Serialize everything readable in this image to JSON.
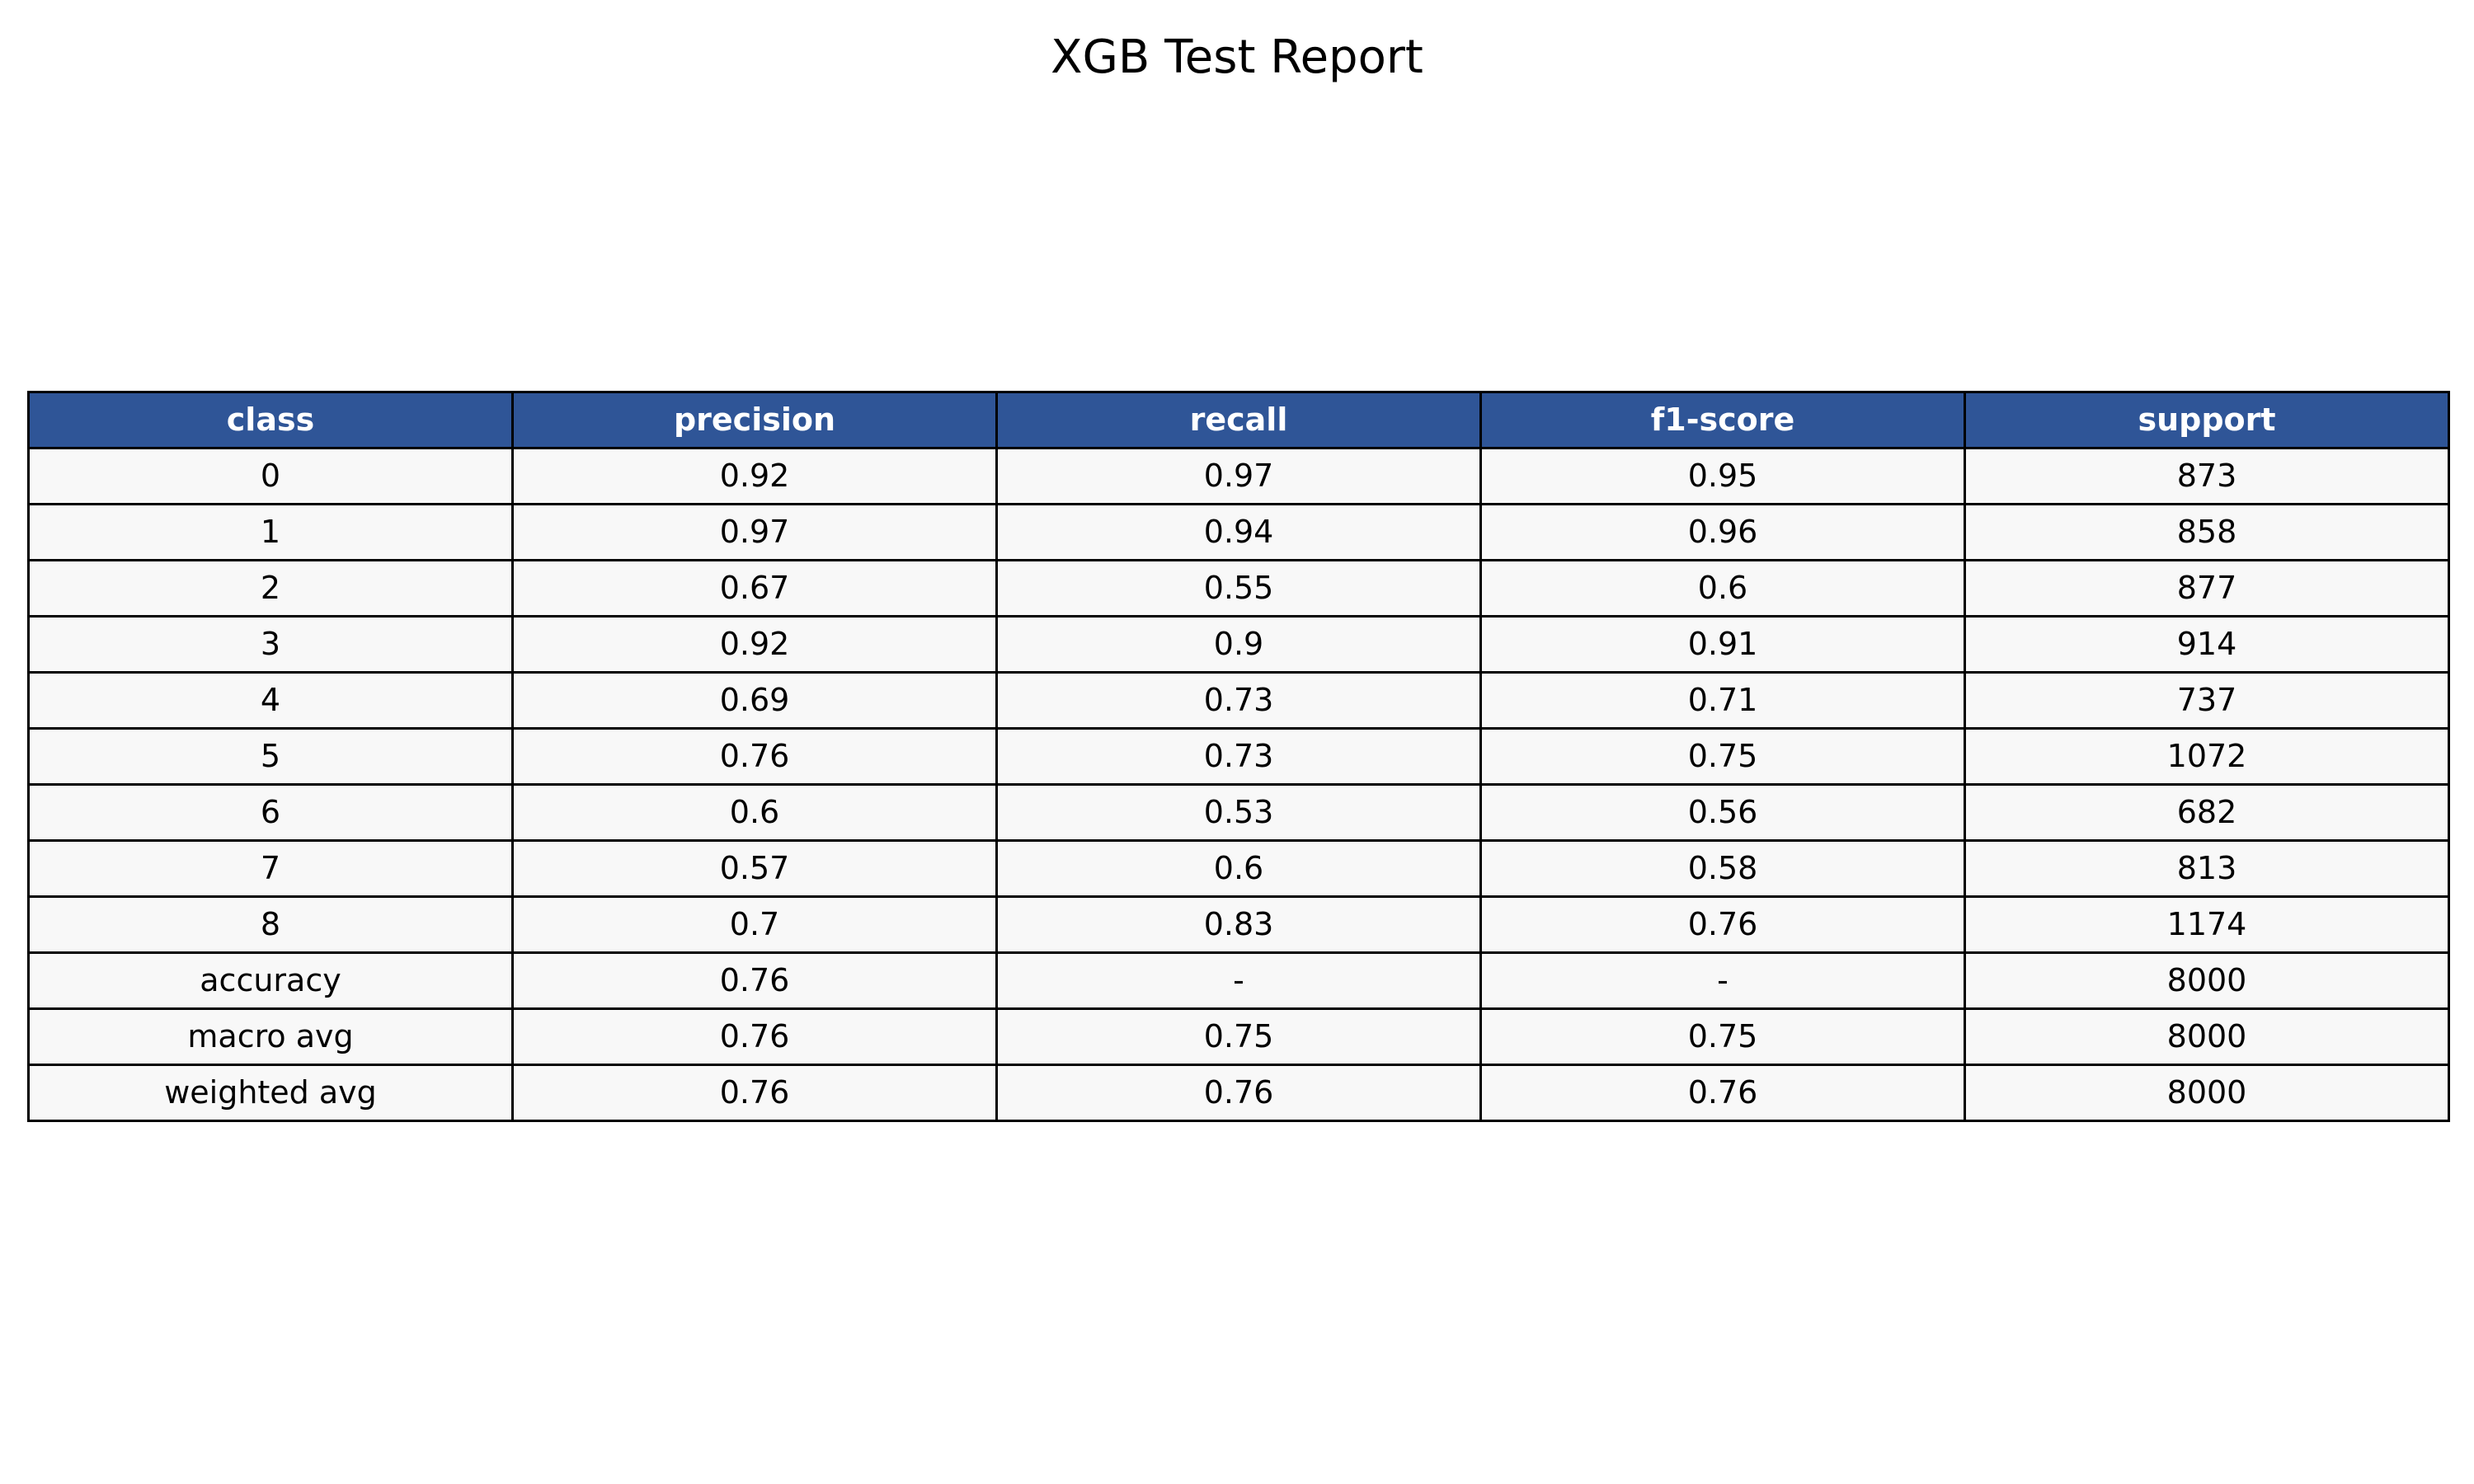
{
  "page": {
    "title": "XGB Test Report"
  },
  "colors": {
    "header_bg": "#2f5597",
    "header_text": "#ffffff",
    "cell_bg": "#f8f8f8",
    "border": "#000000",
    "text": "#000000"
  },
  "chart_data": {
    "type": "table",
    "title": "XGB Test Report",
    "columns": [
      "class",
      "precision",
      "recall",
      "f1-score",
      "support"
    ],
    "rows": [
      [
        "0",
        "0.92",
        "0.97",
        "0.95",
        "873"
      ],
      [
        "1",
        "0.97",
        "0.94",
        "0.96",
        "858"
      ],
      [
        "2",
        "0.67",
        "0.55",
        "0.6",
        "877"
      ],
      [
        "3",
        "0.92",
        "0.9",
        "0.91",
        "914"
      ],
      [
        "4",
        "0.69",
        "0.73",
        "0.71",
        "737"
      ],
      [
        "5",
        "0.76",
        "0.73",
        "0.75",
        "1072"
      ],
      [
        "6",
        "0.6",
        "0.53",
        "0.56",
        "682"
      ],
      [
        "7",
        "0.57",
        "0.6",
        "0.58",
        "813"
      ],
      [
        "8",
        "0.7",
        "0.83",
        "0.76",
        "1174"
      ],
      [
        "accuracy",
        "0.76",
        "-",
        "-",
        "8000"
      ],
      [
        "macro avg",
        "0.76",
        "0.75",
        "0.75",
        "8000"
      ],
      [
        "weighted avg",
        "0.76",
        "0.76",
        "0.76",
        "8000"
      ]
    ]
  }
}
